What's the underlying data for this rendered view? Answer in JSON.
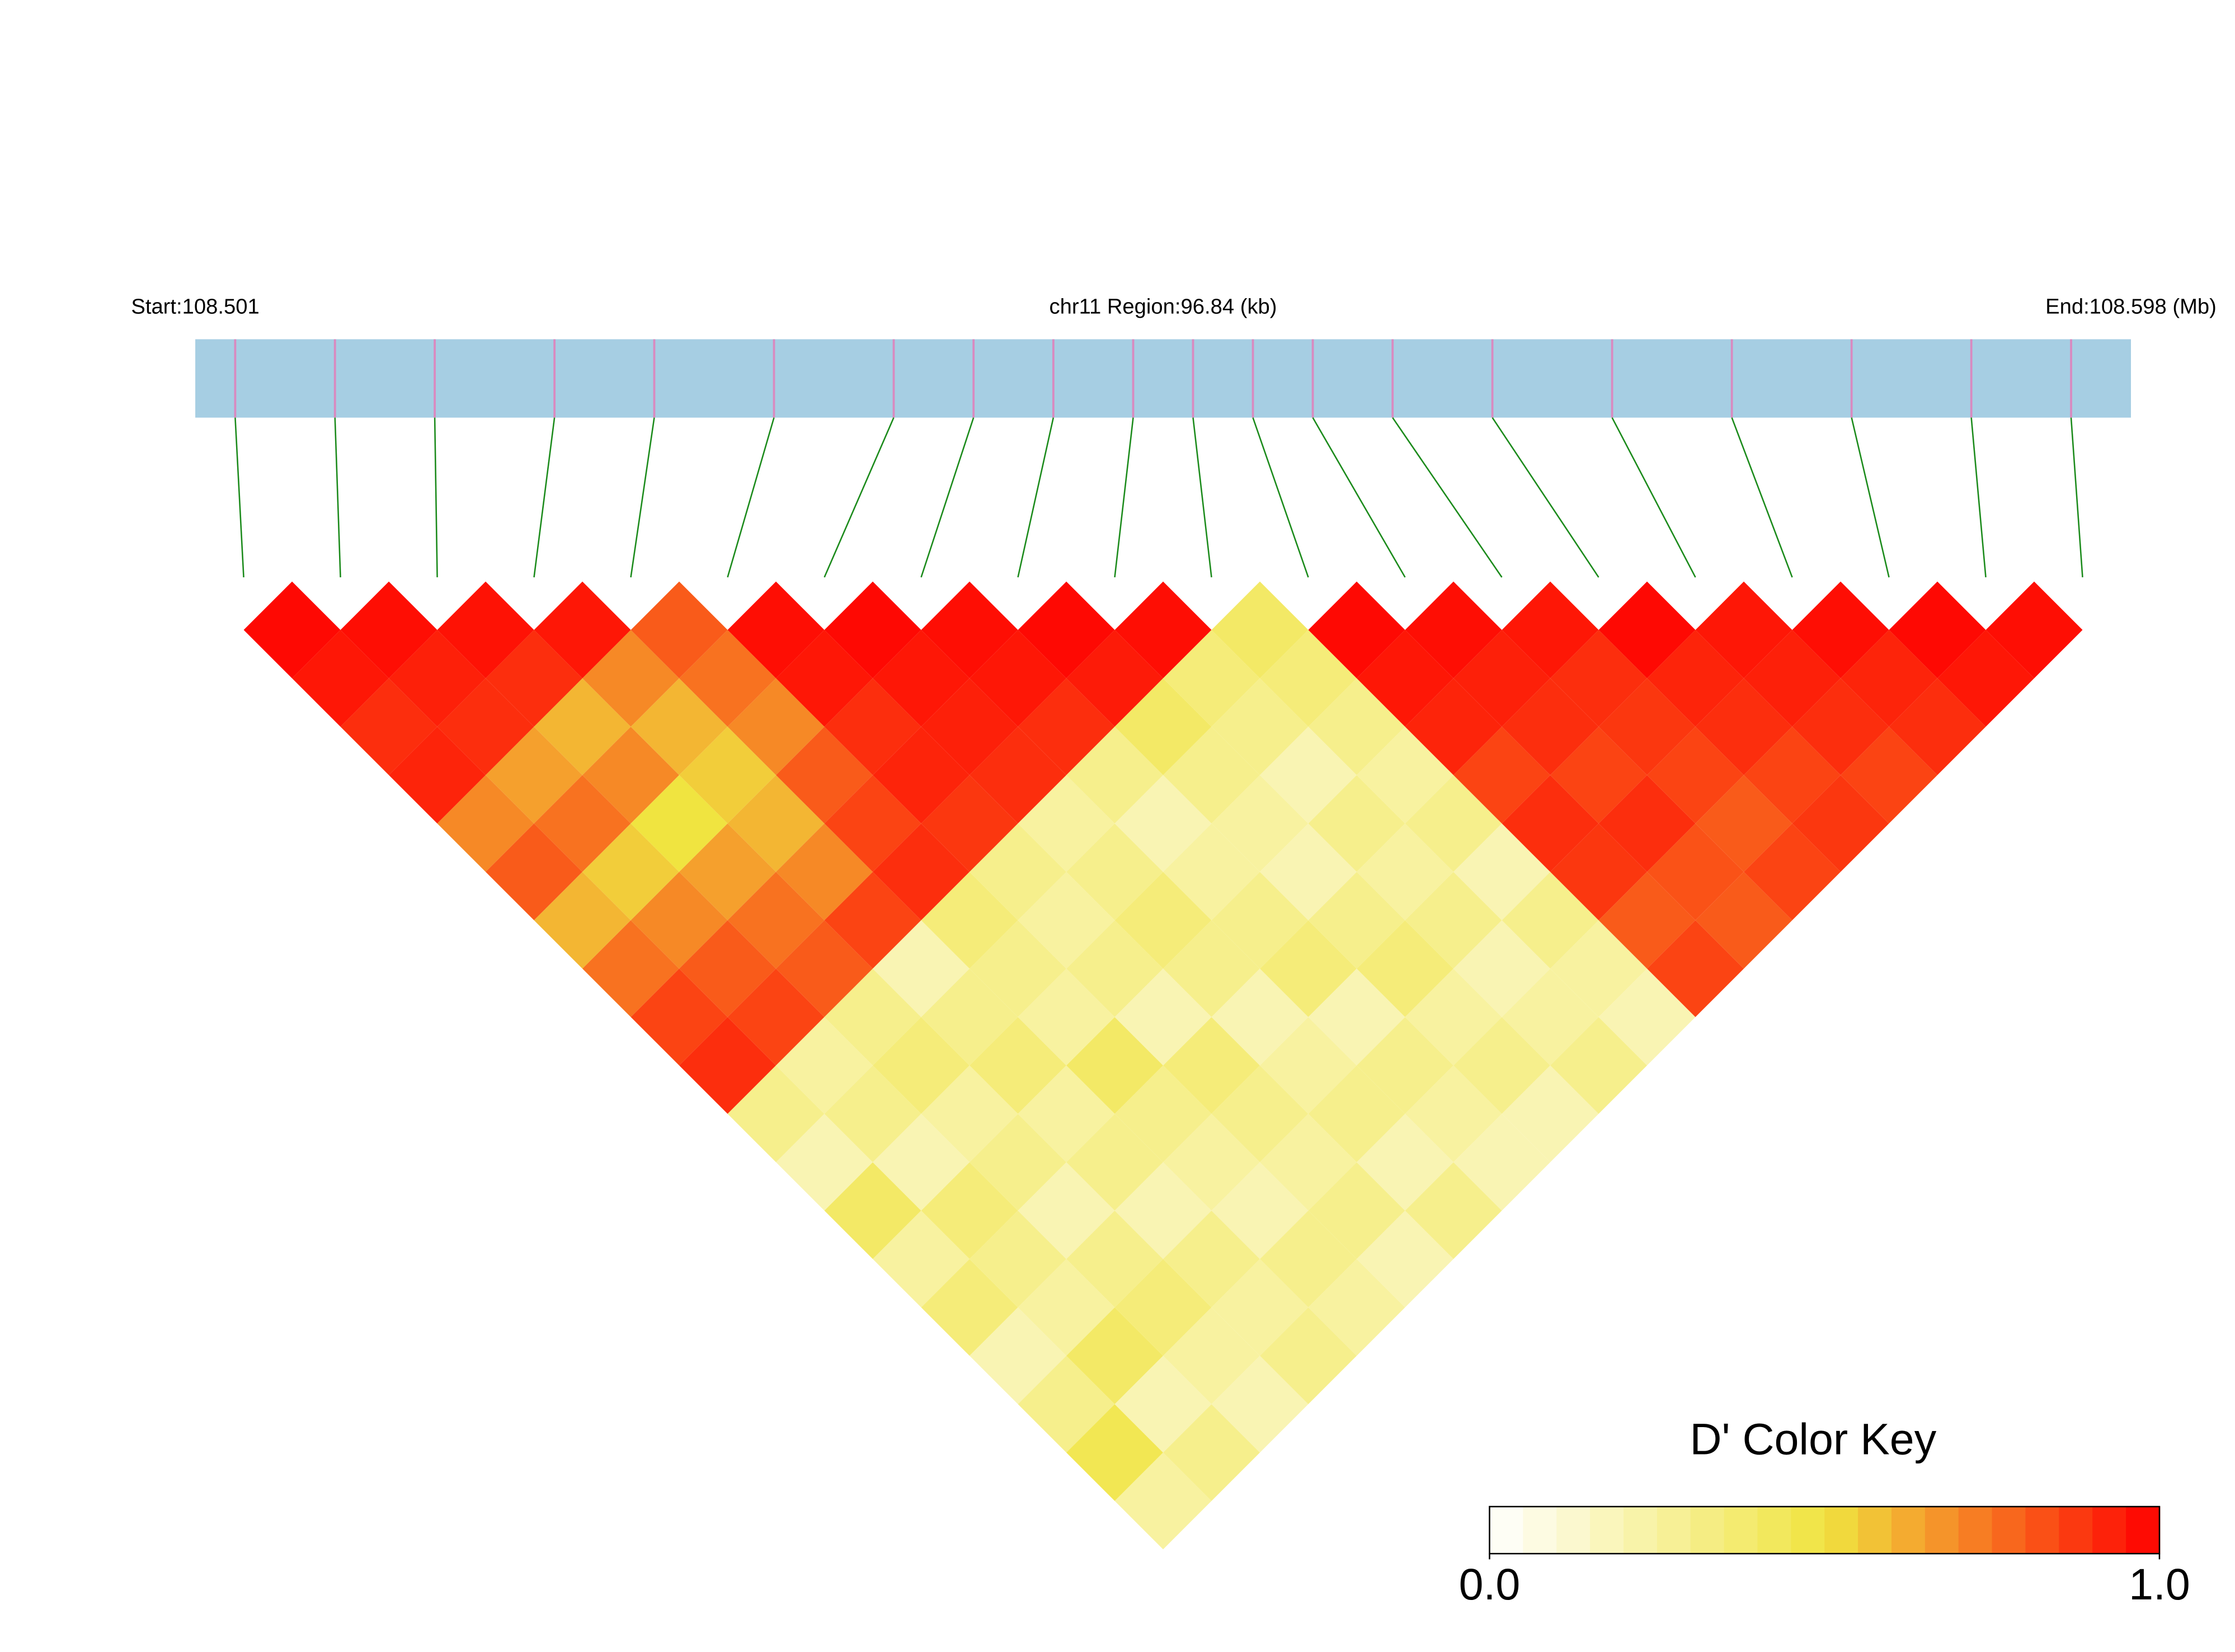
{
  "chart_data": {
    "type": "ld-heatmap",
    "start_label": "Start:108.501",
    "region_label": "chr11 Region:96.84 (kb)",
    "end_label": "End:108.598 (Mb)",
    "xlim": [
      108.501,
      108.598
    ],
    "positions": [
      108.503,
      108.508,
      108.513,
      108.519,
      108.524,
      108.53,
      108.536,
      108.54,
      108.544,
      108.548,
      108.551,
      108.554,
      108.557,
      108.561,
      108.566,
      108.572,
      108.578,
      108.584,
      108.59,
      108.595
    ],
    "ld": [
      [
        0.98,
        0.95,
        0.9,
        0.92,
        0.7,
        0.8,
        0.6,
        0.75,
        0.85,
        0.9,
        0.3,
        0.2,
        0.4,
        0.25,
        0.35,
        0.2,
        0.3,
        0.45,
        0.25
      ],
      [
        0.97,
        0.93,
        0.9,
        0.65,
        0.75,
        0.55,
        0.7,
        0.8,
        0.85,
        0.25,
        0.3,
        0.2,
        0.35,
        0.3,
        0.25,
        0.4,
        0.2,
        0.3
      ],
      [
        0.96,
        0.9,
        0.6,
        0.7,
        0.5,
        0.65,
        0.75,
        0.8,
        0.3,
        0.35,
        0.25,
        0.3,
        0.2,
        0.3,
        0.35,
        0.25,
        0.2
      ],
      [
        0.95,
        0.7,
        0.6,
        0.55,
        0.6,
        0.7,
        0.85,
        0.2,
        0.3,
        0.35,
        0.25,
        0.3,
        0.2,
        0.3,
        0.25,
        0.3
      ],
      [
        0.8,
        0.75,
        0.7,
        0.8,
        0.85,
        0.9,
        0.35,
        0.3,
        0.25,
        0.4,
        0.3,
        0.25,
        0.2,
        0.3,
        0.25
      ],
      [
        0.97,
        0.95,
        0.9,
        0.92,
        0.88,
        0.3,
        0.25,
        0.3,
        0.2,
        0.35,
        0.3,
        0.25,
        0.3,
        0.2
      ],
      [
        0.98,
        0.95,
        0.93,
        0.9,
        0.25,
        0.3,
        0.35,
        0.3,
        0.2,
        0.25,
        0.3,
        0.2,
        0.3
      ],
      [
        0.97,
        0.95,
        0.9,
        0.3,
        0.2,
        0.25,
        0.3,
        0.35,
        0.2,
        0.3,
        0.25,
        0.2
      ],
      [
        0.98,
        0.94,
        0.4,
        0.3,
        0.25,
        0.2,
        0.3,
        0.35,
        0.25,
        0.3,
        0.2
      ],
      [
        0.97,
        0.35,
        0.3,
        0.2,
        0.3,
        0.25,
        0.3,
        0.2,
        0.25,
        0.3
      ],
      [
        0.4,
        0.35,
        0.3,
        0.25,
        0.3,
        0.2,
        0.3,
        0.25,
        0.2
      ],
      [
        0.98,
        0.95,
        0.92,
        0.85,
        0.9,
        0.88,
        0.8,
        0.85
      ],
      [
        0.97,
        0.93,
        0.9,
        0.85,
        0.9,
        0.82,
        0.8
      ],
      [
        0.95,
        0.9,
        0.88,
        0.85,
        0.8,
        0.85
      ],
      [
        0.98,
        0.92,
        0.9,
        0.85,
        0.88
      ],
      [
        0.95,
        0.93,
        0.9,
        0.85
      ],
      [
        0.97,
        0.92,
        0.9
      ],
      [
        0.98,
        0.95
      ],
      [
        0.97
      ]
    ],
    "bar_color": "#a6cee3",
    "snp_color": "#d98ac0",
    "connector_color": "#1a8a1a",
    "colorbar": {
      "title": "D' Color Key",
      "lim": [
        0,
        1
      ],
      "ticks": [
        {
          "value": 0,
          "label": "0.0"
        },
        {
          "value": 1,
          "label": "1.0"
        }
      ]
    }
  }
}
